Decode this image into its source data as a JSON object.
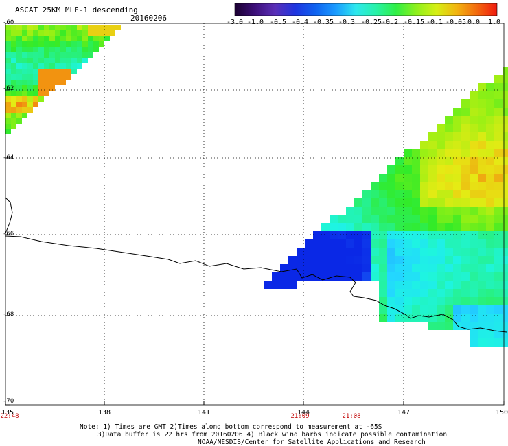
{
  "header": {
    "title": "ASCAT 25KM MLE-1 descending",
    "date": "20160206"
  },
  "colorbar": {
    "ticks": [
      "-3.0",
      "-1.0",
      "-0.5",
      "-0.4",
      "-0.35",
      "-0.3",
      "-0.25",
      "-0.2",
      "-0.15",
      "-0.1",
      "-0.05",
      "0.0",
      "1.0"
    ],
    "colors": [
      "#1a0030",
      "#3d0f7a",
      "#5a2fb8",
      "#1e35e0",
      "#0f63f0",
      "#1a9bff",
      "#2ee8ee",
      "#27f2a8",
      "#2fef45",
      "#8ef01c",
      "#d6ef14",
      "#f2b40f",
      "#f36a0d",
      "#f01a10"
    ]
  },
  "map": {
    "lat_labels": [
      "-60",
      "-62",
      "-64",
      "-66",
      "-68",
      "-70"
    ],
    "lon_labels": [
      "135",
      "138",
      "141",
      "144",
      "147",
      "150"
    ],
    "time_labels": [
      "22:48",
      "21:09",
      "21:08"
    ]
  },
  "notes": {
    "line1": "Note: 1) Times are GMT 2)Times along bottom correspond to measurement at -65S",
    "line2": "3)Data buffer is 22 hrs from 20160206 4) Black wind barbs indicate possible contamination",
    "line3": "NOAA/NESDIS/Center for Satellite Applications and Research"
  }
}
